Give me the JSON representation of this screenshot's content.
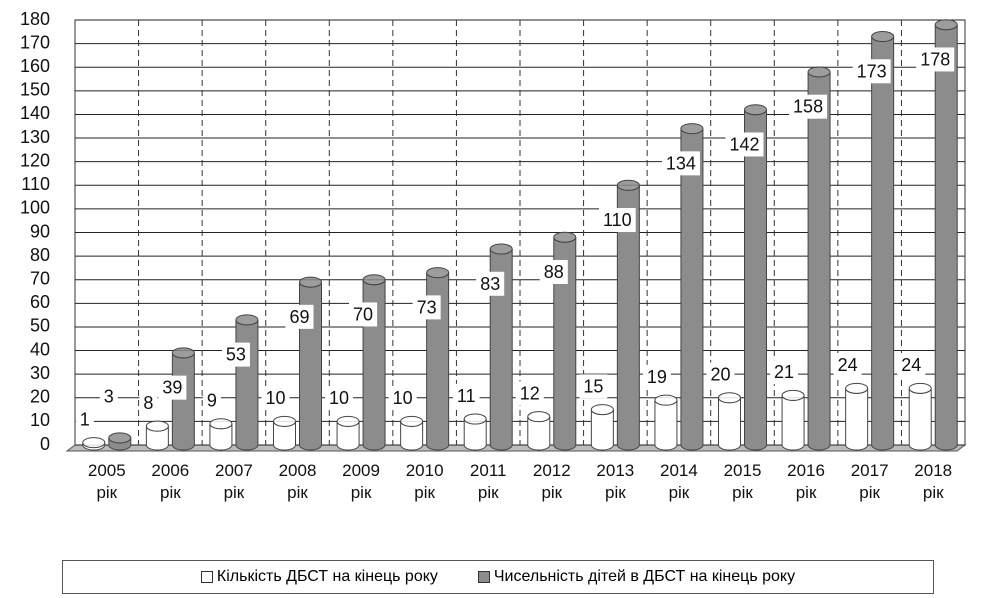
{
  "chart_data": {
    "type": "bar",
    "categories": [
      "2005 рік",
      "2006 рік",
      "2007 рік",
      "2008 рік",
      "2009 рік",
      "2010 рік",
      "2011 рік",
      "2012 рік",
      "2013 рік",
      "2014 рік",
      "2015 рік",
      "2016 рік",
      "2017 рік",
      "2018 рік"
    ],
    "series": [
      {
        "name": "Кількість ДБСТ на кінець року",
        "color": "#ffffff",
        "values": [
          1,
          8,
          9,
          10,
          10,
          10,
          11,
          12,
          15,
          19,
          20,
          21,
          24,
          24
        ]
      },
      {
        "name": "Чисельність дітей в ДБСТ на кінець року",
        "color": "#8c8c8c",
        "values": [
          3,
          39,
          53,
          69,
          70,
          73,
          83,
          88,
          110,
          134,
          142,
          158,
          173,
          178
        ]
      }
    ],
    "ylim": [
      0,
      180
    ],
    "yticks": [
      0,
      10,
      20,
      30,
      40,
      50,
      60,
      70,
      80,
      90,
      100,
      110,
      120,
      130,
      140,
      150,
      160,
      170,
      180
    ],
    "grid": true,
    "legend": "bottom"
  }
}
